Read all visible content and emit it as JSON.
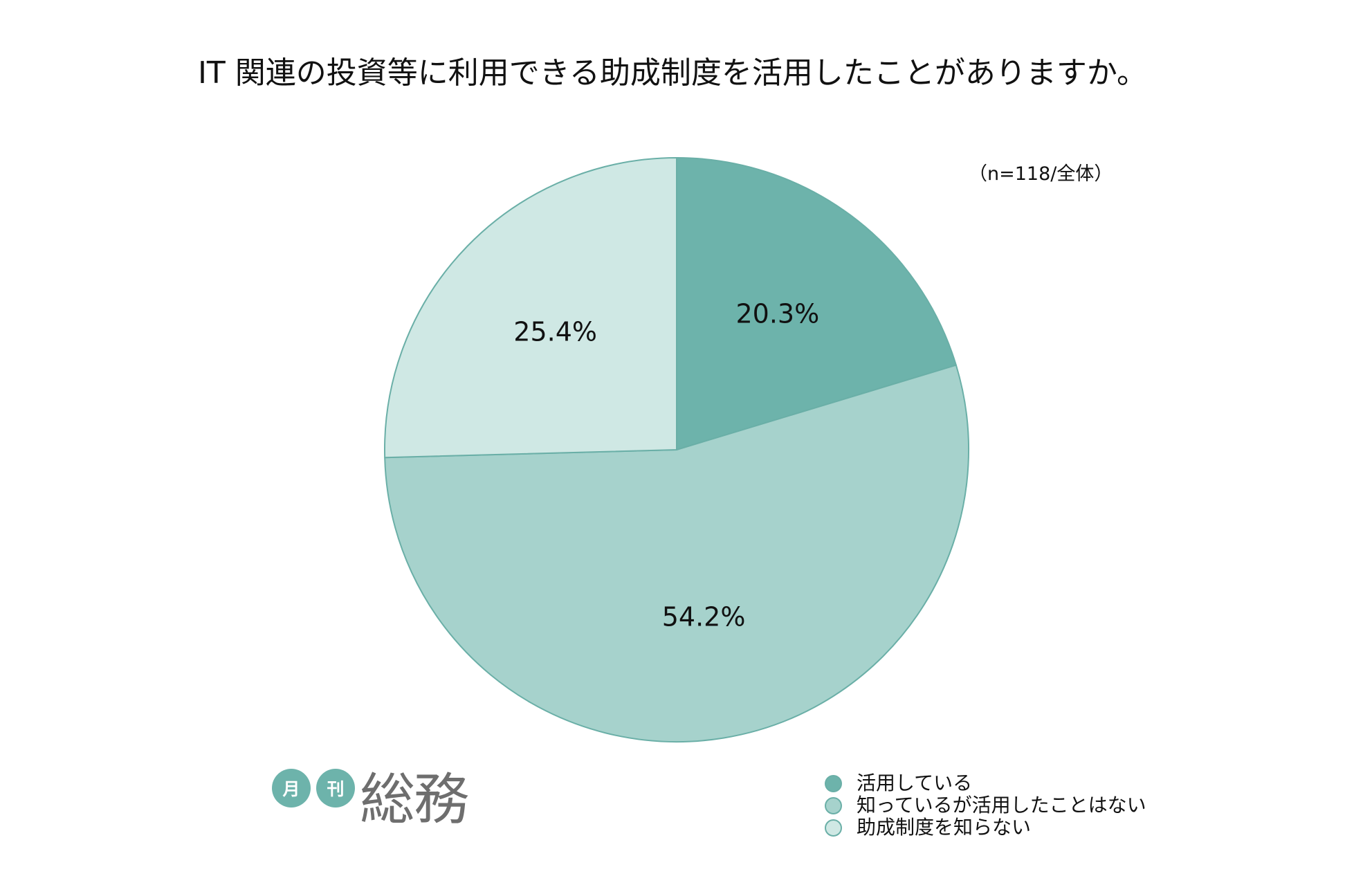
{
  "chart_data": {
    "type": "pie",
    "title": "IT 関連の投資等に利用できる助成制度を活用したことがありますか。",
    "note": "（n=118/全体）",
    "categories": [
      "活用している",
      "知っているが活用したことはない",
      "助成制度を知らない"
    ],
    "values": [
      20.3,
      54.2,
      25.4
    ],
    "unit": "%",
    "colors": [
      "#6db3ab",
      "#a6d2cc",
      "#cfe8e4"
    ],
    "edge_color": "#6aafa7",
    "start": "top",
    "direction": "clockwise",
    "legend_position": "bottom-right"
  },
  "logo": {
    "badge_1": "月",
    "badge_2": "刊",
    "name": "総務",
    "badge_color": "#6db3ab",
    "name_color": "#6e6e6e"
  }
}
